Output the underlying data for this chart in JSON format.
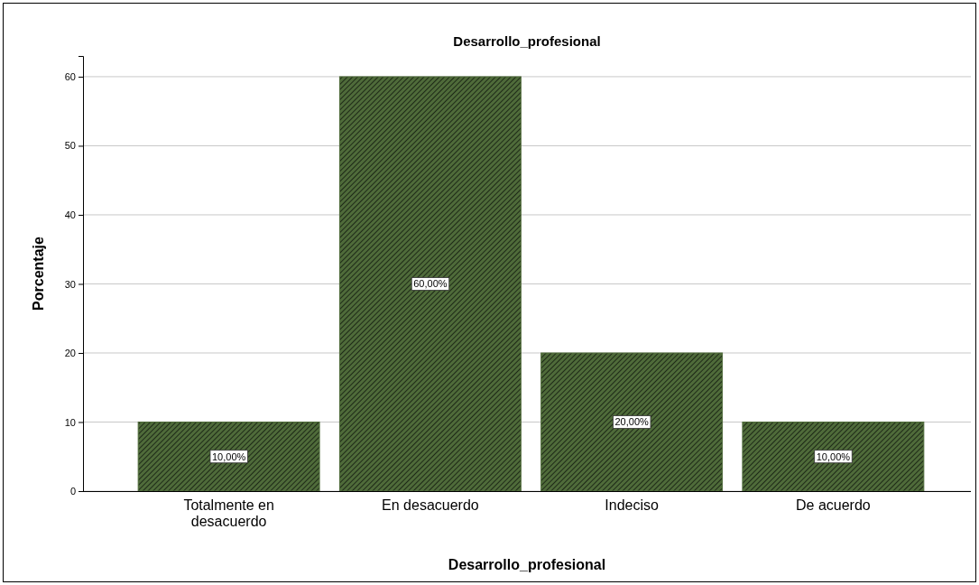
{
  "chart_data": {
    "type": "bar",
    "title": "Desarrollo_profesional",
    "xlabel": "Desarrollo_profesional",
    "ylabel": "Porcentaje",
    "categories": [
      "Totalmente en desacuerdo",
      "En desacuerdo",
      "Indeciso",
      "De acuerdo"
    ],
    "values": [
      10,
      60,
      20,
      10
    ],
    "value_labels": [
      "10,00%",
      "60,00%",
      "20,00%",
      "10,00%"
    ],
    "color": "#4f6b3a",
    "ylim": [
      0,
      63
    ],
    "yticks": [
      0,
      10,
      20,
      30,
      40,
      50,
      60
    ],
    "grid": "y"
  }
}
